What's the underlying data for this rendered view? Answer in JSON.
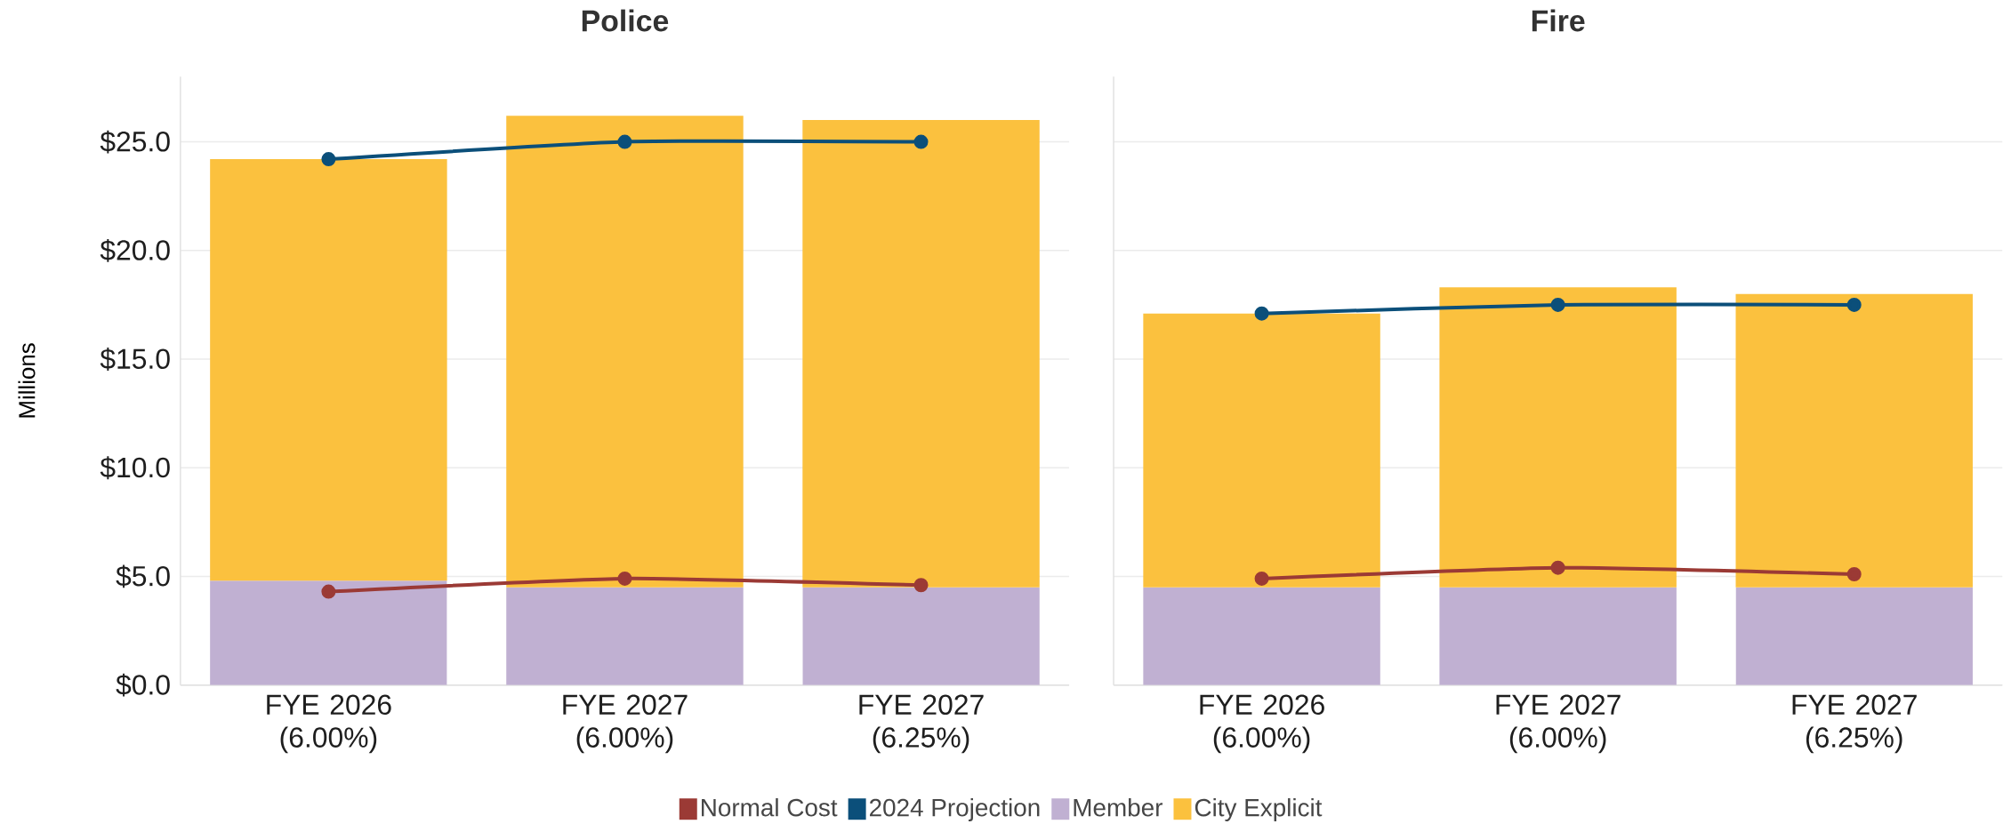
{
  "chart_data": [
    {
      "type": "bar",
      "title": "Police",
      "ylabel": "Millions",
      "categories": [
        "FYE 2026 (6.00%)",
        "FYE 2027 (6.00%)",
        "FYE 2027 (6.25%)"
      ],
      "stacked": true,
      "ylim": [
        0,
        28
      ],
      "yticks": [
        {
          "value": 0,
          "label": "$0.0"
        },
        {
          "value": 5,
          "label": "$5.0"
        },
        {
          "value": 10,
          "label": "$10.0"
        },
        {
          "value": 15,
          "label": "$15.0"
        },
        {
          "value": 20,
          "label": "$20.0"
        },
        {
          "value": 25,
          "label": "$25.0"
        }
      ],
      "grid": "y",
      "legend": "bottom",
      "marker": "circle",
      "series": [
        {
          "name": "Normal Cost",
          "type": "line",
          "color": "#9b3a35",
          "values": [
            4.3,
            4.9,
            4.6
          ]
        },
        {
          "name": "2024 Projection",
          "type": "line",
          "color": "#0b4f7a",
          "values": [
            24.2,
            25.0,
            25.0
          ]
        },
        {
          "name": "Member",
          "type": "bar",
          "color": "#c0b0d2",
          "values": [
            4.8,
            4.5,
            4.5
          ]
        },
        {
          "name": "City Explicit",
          "type": "bar",
          "color": "#fbc13e",
          "values": [
            19.4,
            21.7,
            21.5
          ]
        }
      ]
    },
    {
      "type": "bar",
      "title": "Fire",
      "categories": [
        "FYE 2026 (6.00%)",
        "FYE 2027 (6.00%)",
        "FYE 2027 (6.25%)"
      ],
      "stacked": true,
      "ylim": [
        0,
        28
      ],
      "yticks": [
        0,
        5,
        10,
        15,
        20,
        25
      ],
      "grid": "y",
      "tick_labels": "x",
      "marker": "circle",
      "series": [
        {
          "type": "line",
          "color": "#9b3a35",
          "values": [
            4.9,
            5.4,
            5.1
          ]
        },
        {
          "type": "line",
          "color": "#0b4f7a",
          "values": [
            17.1,
            17.5,
            17.5
          ]
        },
        {
          "type": "bar",
          "color": "#c0b0d2",
          "values": [
            4.5,
            4.5,
            4.5
          ]
        },
        {
          "type": "bar",
          "color": "#fbc13e",
          "values": [
            12.6,
            13.8,
            13.5
          ]
        }
      ]
    }
  ]
}
